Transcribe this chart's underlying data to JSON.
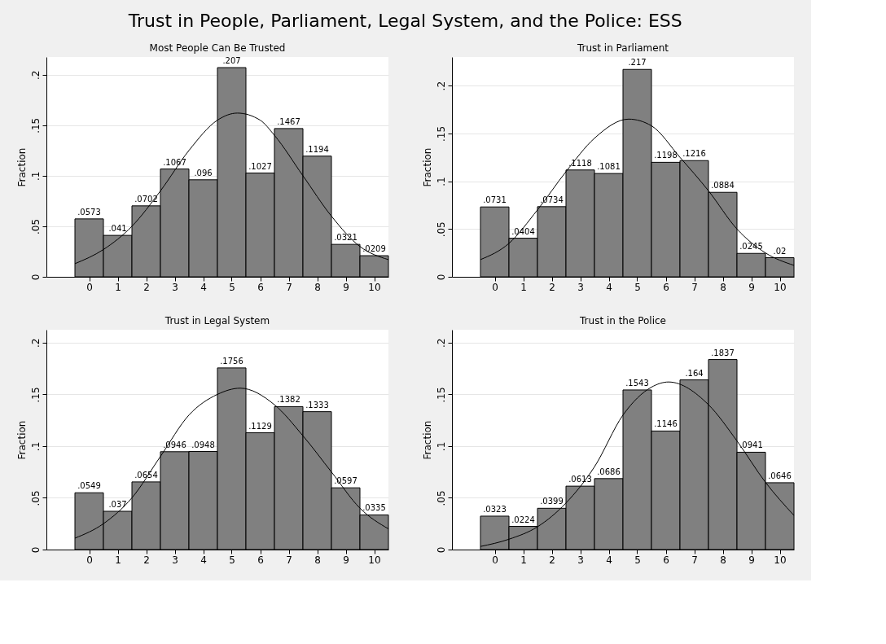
{
  "chart_data": [
    {
      "type": "histogram",
      "annotations": [
        "Trust in People, Parliament, Legal System, and the Police: ESS"
      ],
      "title": "Most People Can Be Trusted",
      "ylabel": "Fraction",
      "color": "#808080",
      "bins": [
        -0.5,
        0.5,
        1.5,
        2.5,
        3.5,
        4.5,
        5.5,
        6.5,
        7.5,
        8.5,
        9.5,
        10.5
      ],
      "values": [
        0.0573,
        0.041,
        0.0702,
        0.1067,
        0.096,
        0.207,
        0.1027,
        0.1467,
        0.1194,
        0.0321,
        0.0209
      ],
      "value_labels": [
        ".0573",
        ".041",
        ".0702",
        ".1067",
        ".096",
        ".207",
        ".1027",
        ".1467",
        ".1194",
        ".0321",
        ".0209"
      ],
      "series": [
        {
          "type": "line",
          "color": "#000000",
          "x": [
            -0.5,
            0.5,
            1.5,
            2.5,
            3.5,
            4.5,
            5.2,
            6,
            6.5,
            7.5,
            8.5,
            9.5,
            10.5
          ],
          "values": [
            0.013,
            0.027,
            0.05,
            0.085,
            0.125,
            0.155,
            0.162,
            0.155,
            0.14,
            0.1,
            0.06,
            0.03,
            0.017
          ]
        }
      ],
      "xlim": [
        -1.5,
        10.5
      ],
      "xticks": [
        0,
        1,
        2,
        3,
        4,
        5,
        6,
        7,
        8,
        9,
        10
      ],
      "ylim": [
        0,
        0.2175
      ],
      "yticks": [
        {
          "value": 0,
          "label": "0"
        },
        {
          "value": 0.05,
          "label": ".05"
        },
        {
          "value": 0.1,
          "label": ".1"
        },
        {
          "value": 0.15,
          "label": ".15"
        },
        {
          "value": 0.2,
          "label": ".2"
        }
      ],
      "grid": "y"
    },
    {
      "type": "histogram",
      "title": "Trust in Parliament",
      "ylabel": "Fraction",
      "color": "#808080",
      "bins": [
        -0.5,
        0.5,
        1.5,
        2.5,
        3.5,
        4.5,
        5.5,
        6.5,
        7.5,
        8.5,
        9.5,
        10.5
      ],
      "values": [
        0.0731,
        0.0404,
        0.0734,
        0.1118,
        0.1081,
        0.217,
        0.1198,
        0.1216,
        0.0884,
        0.0245,
        0.02
      ],
      "value_labels": [
        ".0731",
        ".0404",
        ".0734",
        ".1118",
        ".1081",
        ".217",
        ".1198",
        ".1216",
        ".0884",
        ".0245",
        ".02"
      ],
      "series": [
        {
          "type": "line",
          "color": "#000000",
          "x": [
            -0.5,
            0.5,
            1.5,
            2.5,
            3.5,
            4.7,
            5.5,
            6.5,
            7.5,
            8.5,
            9.5,
            10.5
          ],
          "values": [
            0.018,
            0.035,
            0.07,
            0.11,
            0.145,
            0.165,
            0.158,
            0.125,
            0.09,
            0.05,
            0.025,
            0.012
          ]
        }
      ],
      "xlim": [
        -1.5,
        10.5
      ],
      "xticks": [
        0,
        1,
        2,
        3,
        4,
        5,
        6,
        7,
        8,
        9,
        10
      ],
      "ylim": [
        0,
        0.23
      ],
      "yticks": [
        {
          "value": 0,
          "label": "0"
        },
        {
          "value": 0.05,
          "label": ".05"
        },
        {
          "value": 0.1,
          "label": ".1"
        },
        {
          "value": 0.15,
          "label": ".15"
        },
        {
          "value": 0.2,
          "label": ".2"
        }
      ],
      "grid": "y"
    },
    {
      "type": "histogram",
      "title": "Trust in Legal System",
      "ylabel": "Fraction",
      "color": "#808080",
      "bins": [
        -0.5,
        0.5,
        1.5,
        2.5,
        3.5,
        4.5,
        5.5,
        6.5,
        7.5,
        8.5,
        9.5,
        10.5
      ],
      "values": [
        0.0549,
        0.037,
        0.0654,
        0.0946,
        0.0948,
        0.1756,
        0.1129,
        0.1382,
        0.1333,
        0.0597,
        0.0335
      ],
      "value_labels": [
        ".0549",
        ".037",
        ".0654",
        ".0946",
        ".0948",
        ".1756",
        ".1129",
        ".1382",
        ".1333",
        ".0597",
        ".0335"
      ],
      "series": [
        {
          "type": "line",
          "color": "#000000",
          "x": [
            -0.5,
            0.5,
            1.5,
            2.5,
            3.5,
            4.5,
            5.3,
            6.5,
            7.5,
            8.5,
            9.5,
            10.5
          ],
          "values": [
            0.011,
            0.025,
            0.05,
            0.09,
            0.13,
            0.15,
            0.156,
            0.14,
            0.11,
            0.075,
            0.04,
            0.02
          ]
        }
      ],
      "xlim": [
        -1.5,
        10.5
      ],
      "xticks": [
        0,
        1,
        2,
        3,
        4,
        5,
        6,
        7,
        8,
        9,
        10
      ],
      "ylim": [
        0,
        0.2125
      ],
      "yticks": [
        {
          "value": 0,
          "label": "0"
        },
        {
          "value": 0.05,
          "label": ".05"
        },
        {
          "value": 0.1,
          "label": ".1"
        },
        {
          "value": 0.15,
          "label": ".15"
        },
        {
          "value": 0.2,
          "label": ".2"
        }
      ],
      "grid": "y"
    },
    {
      "type": "histogram",
      "title": "Trust in the Police",
      "ylabel": "Fraction",
      "color": "#808080",
      "bins": [
        -0.5,
        0.5,
        1.5,
        2.5,
        3.5,
        4.5,
        5.5,
        6.5,
        7.5,
        8.5,
        9.5,
        10.5
      ],
      "values": [
        0.0323,
        0.0224,
        0.0399,
        0.0613,
        0.0686,
        0.1543,
        0.1146,
        0.164,
        0.1837,
        0.0941,
        0.0646
      ],
      "value_labels": [
        ".0323",
        ".0224",
        ".0399",
        ".0613",
        ".0686",
        ".1543",
        ".1146",
        ".164",
        ".1837",
        ".0941",
        ".0646"
      ],
      "series": [
        {
          "type": "line",
          "color": "#000000",
          "x": [
            -0.5,
            0.5,
            1.5,
            2.5,
            3.5,
            4.5,
            5.5,
            6.1,
            7.5,
            8.5,
            9.5,
            10.5
          ],
          "values": [
            0.003,
            0.01,
            0.022,
            0.045,
            0.08,
            0.13,
            0.157,
            0.162,
            0.14,
            0.105,
            0.065,
            0.033
          ]
        }
      ],
      "xlim": [
        -1.5,
        10.5
      ],
      "xticks": [
        0,
        1,
        2,
        3,
        4,
        5,
        6,
        7,
        8,
        9,
        10
      ],
      "ylim": [
        0,
        0.2125
      ],
      "yticks": [
        {
          "value": 0,
          "label": "0"
        },
        {
          "value": 0.05,
          "label": ".05"
        },
        {
          "value": 0.1,
          "label": ".1"
        },
        {
          "value": 0.15,
          "label": ".15"
        },
        {
          "value": 0.2,
          "label": ".2"
        }
      ],
      "grid": "y"
    }
  ]
}
